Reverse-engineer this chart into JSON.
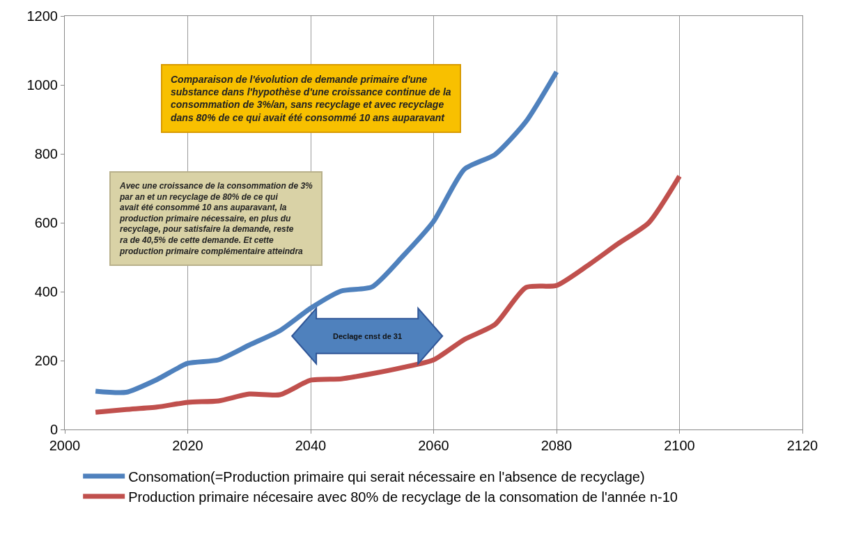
{
  "chart_data": {
    "type": "line",
    "x": [
      2005,
      2010,
      2015,
      2020,
      2025,
      2030,
      2035,
      2040,
      2045,
      2050,
      2055,
      2060,
      2065,
      2070,
      2075,
      2080,
      2085,
      2090,
      2095,
      2100
    ],
    "series": [
      {
        "name": "Consomation(=Production primaire qui serait nécessaire en l'absence de recyclage)",
        "color": "#4f81bd",
        "values": [
          111,
          108,
          145,
          192,
          202,
          245,
          287,
          352,
          402,
          414,
          503,
          604,
          755,
          798,
          893,
          1038,
          null,
          null,
          null,
          null
        ]
      },
      {
        "name": "Production primaire nécesaire avec 80% de recyclage de la consomation de l'année n-10",
        "color": "#c0504d",
        "values": [
          50,
          58,
          65,
          79,
          83,
          103,
          101,
          143,
          147,
          162,
          180,
          202,
          261,
          305,
          412,
          418,
          475,
          539,
          600,
          735
        ]
      }
    ],
    "xlim": [
      2000,
      2120
    ],
    "xticks": [
      2000,
      2020,
      2040,
      2060,
      2080,
      2100,
      2120
    ],
    "ylim": [
      0,
      1200
    ],
    "yticks": [
      0,
      200,
      400,
      600,
      800,
      1000,
      1200
    ],
    "grid": "x",
    "legend": "bottom",
    "marker": "none",
    "line_style": "solid",
    "annotations": [
      "Comparaison de l'évolution de demande primaire d'une substance dans l'hypothèse d'une croissance continue de la consommation de 3%/an, sans recyclage et avec recyclage dans 80% de ce qui avait été consommé 10 ans auparavant",
      "Avec une croissance de la consommation de 3% par an et un recyclage de 80% de ce qui avait été consommé 10 ans auparavant, la production primaire nécessaire, en plus du recyclage, pour satisfaire la demande, reste ra de 40,5% de cette demande. Et cette production primaire complémentaire atteindra",
      "Declage cnst de 31"
    ]
  }
}
